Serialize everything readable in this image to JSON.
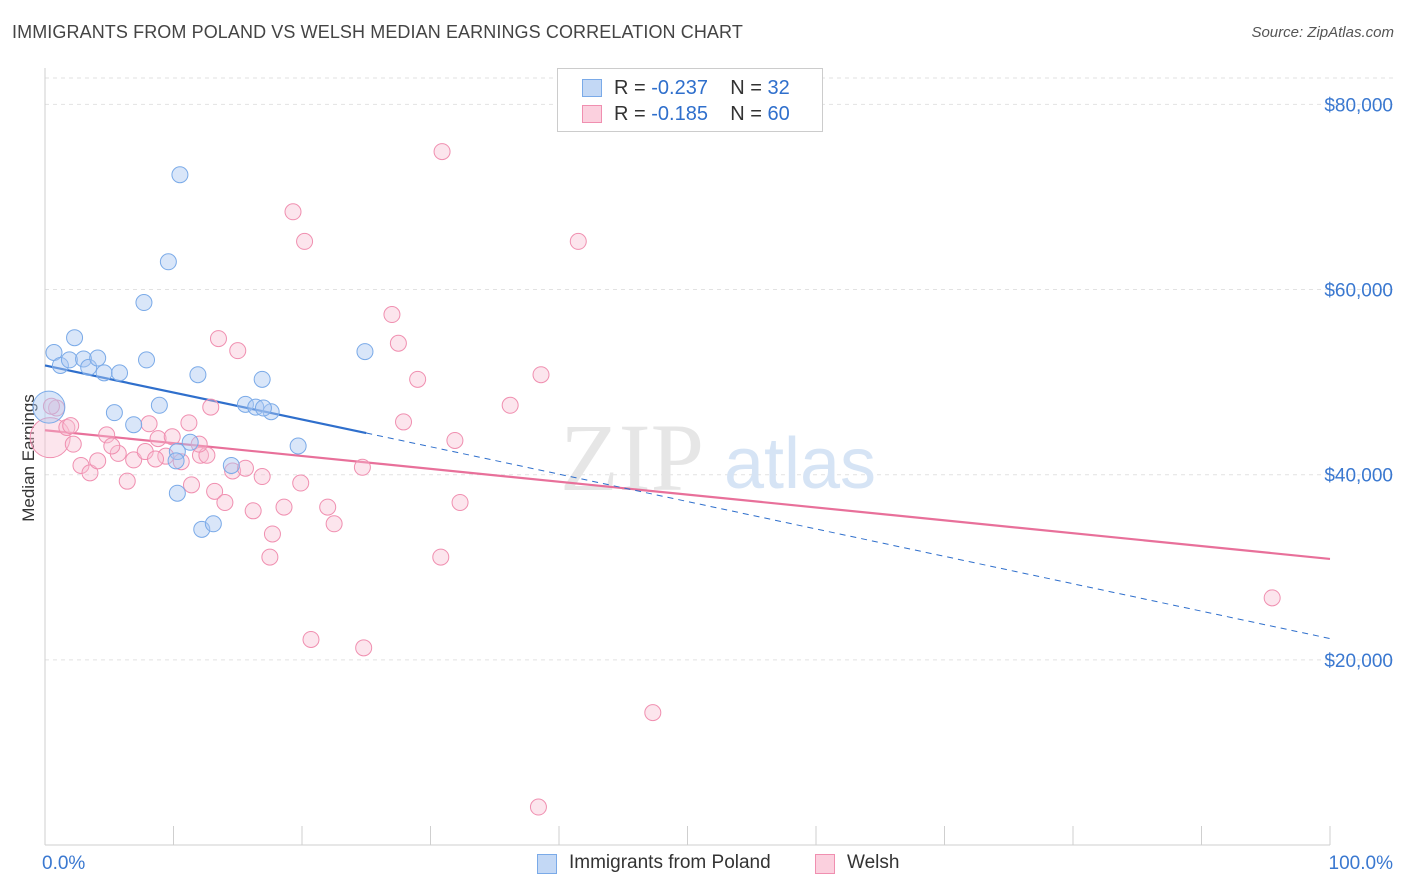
{
  "title": "IMMIGRANTS FROM POLAND VS WELSH MEDIAN EARNINGS CORRELATION CHART",
  "source": "Source: ZipAtlas.com",
  "watermark": {
    "zip": "ZIP",
    "atlas": "atlas"
  },
  "legend": {
    "rows": [
      {
        "r_label": "R = ",
        "r_value": "-0.237",
        "n_label": "N = ",
        "n_value": "32"
      },
      {
        "r_label": "R = ",
        "r_value": "-0.185",
        "n_label": "N = ",
        "n_value": "60"
      }
    ]
  },
  "bottom_legend": [
    "Immigrants from Poland",
    "Welsh"
  ],
  "chart_data": {
    "type": "scatter",
    "title": "IMMIGRANTS FROM POLAND VS WELSH MEDIAN EARNINGS CORRELATION CHART",
    "xlabel": "",
    "ylabel": "Median Earnings",
    "xlim": [
      0,
      100
    ],
    "ylim": [
      0,
      83500
    ],
    "x_tick_labels": [
      "0.0%",
      "100.0%"
    ],
    "y_ticks": [
      20000,
      40000,
      60000,
      80000
    ],
    "y_tick_labels": [
      "$20,000",
      "$40,000",
      "$60,000",
      "$80,000"
    ],
    "grid": true,
    "legend_position": "top-center",
    "colors": {
      "poland": "#7aaae8",
      "welsh": "#f08fb0",
      "poland_line": "#2f6fcc",
      "welsh_line": "#e8709a",
      "tick_label": "#3a78d0"
    },
    "series": [
      {
        "name": "Immigrants from Poland",
        "color": "#7aaae8",
        "trend": {
          "x0": 0,
          "y0": 51800,
          "x1": 25,
          "y1": 44500,
          "dash_x1": 100,
          "dash_y1": 22300
        },
        "points": [
          [
            0.3,
            47300
          ],
          [
            0.7,
            53200
          ],
          [
            1.2,
            51800
          ],
          [
            1.9,
            52400
          ],
          [
            2.3,
            54800
          ],
          [
            3.0,
            52500
          ],
          [
            3.4,
            51600
          ],
          [
            4.1,
            52600
          ],
          [
            4.6,
            51000
          ],
          [
            5.8,
            51000
          ],
          [
            5.4,
            46700
          ],
          [
            6.9,
            45400
          ],
          [
            7.7,
            58600
          ],
          [
            7.9,
            52400
          ],
          [
            8.9,
            47500
          ],
          [
            9.6,
            63000
          ],
          [
            10.3,
            38000
          ],
          [
            10.3,
            42500
          ],
          [
            10.2,
            41500
          ],
          [
            10.5,
            72400
          ],
          [
            11.3,
            43500
          ],
          [
            11.9,
            50800
          ],
          [
            12.2,
            34100
          ],
          [
            13.1,
            34700
          ],
          [
            14.5,
            41000
          ],
          [
            15.6,
            47600
          ],
          [
            16.4,
            47300
          ],
          [
            16.9,
            50300
          ],
          [
            17.6,
            46800
          ],
          [
            19.7,
            43100
          ],
          [
            24.9,
            53300
          ],
          [
            17.0,
            47200
          ]
        ]
      },
      {
        "name": "Welsh",
        "color": "#f08fb0",
        "trend": {
          "x0": 0,
          "y0": 44800,
          "x1": 100,
          "y1": 30900
        },
        "points": [
          [
            0.4,
            44000
          ],
          [
            0.9,
            47200
          ],
          [
            1.7,
            45100
          ],
          [
            2.2,
            43300
          ],
          [
            2.8,
            41000
          ],
          [
            3.5,
            40200
          ],
          [
            4.1,
            41500
          ],
          [
            4.8,
            44300
          ],
          [
            5.7,
            42300
          ],
          [
            6.4,
            39300
          ],
          [
            6.9,
            41600
          ],
          [
            7.8,
            42500
          ],
          [
            8.1,
            45500
          ],
          [
            8.8,
            43900
          ],
          [
            9.4,
            42000
          ],
          [
            9.9,
            44100
          ],
          [
            10.6,
            41400
          ],
          [
            11.2,
            45600
          ],
          [
            11.4,
            38900
          ],
          [
            12.1,
            42100
          ],
          [
            12.6,
            42100
          ],
          [
            12.9,
            47300
          ],
          [
            13.2,
            38200
          ],
          [
            13.5,
            54700
          ],
          [
            14.0,
            37000
          ],
          [
            14.6,
            40400
          ],
          [
            15.0,
            53400
          ],
          [
            15.6,
            40700
          ],
          [
            16.2,
            36100
          ],
          [
            16.9,
            39800
          ],
          [
            17.5,
            31100
          ],
          [
            17.7,
            33600
          ],
          [
            18.6,
            36500
          ],
          [
            19.3,
            68400
          ],
          [
            19.9,
            39100
          ],
          [
            20.2,
            65200
          ],
          [
            20.7,
            22200
          ],
          [
            22.0,
            36500
          ],
          [
            22.5,
            34700
          ],
          [
            24.7,
            40800
          ],
          [
            24.8,
            21300
          ],
          [
            27.0,
            57300
          ],
          [
            27.5,
            54200
          ],
          [
            27.9,
            45700
          ],
          [
            29.0,
            50300
          ],
          [
            30.8,
            31100
          ],
          [
            30.9,
            74900
          ],
          [
            31.9,
            43700
          ],
          [
            32.3,
            37000
          ],
          [
            36.2,
            47500
          ],
          [
            38.6,
            50800
          ],
          [
            38.4,
            4100
          ],
          [
            41.5,
            65200
          ],
          [
            47.3,
            14300
          ],
          [
            95.5,
            26700
          ],
          [
            2.0,
            45300
          ],
          [
            5.2,
            43100
          ],
          [
            8.6,
            41700
          ],
          [
            12.0,
            43300
          ],
          [
            0.5,
            47400
          ]
        ]
      }
    ]
  }
}
